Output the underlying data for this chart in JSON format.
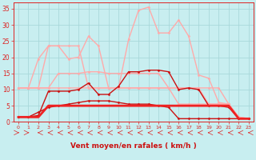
{
  "xlabel": "Vent moyen/en rafales ( km/h )",
  "background_color": "#c8eef0",
  "grid_color": "#a8d8da",
  "ylim": [
    0,
    37
  ],
  "yticks": [
    0,
    5,
    10,
    15,
    20,
    25,
    30,
    35
  ],
  "xlim": [
    -0.5,
    23.5
  ],
  "tick_color": "#dd2222",
  "label_color": "#cc1111",
  "series": [
    {
      "y": [
        10.5,
        10.5,
        10.5,
        10.5,
        10.5,
        10.5,
        10.5,
        10.5,
        10.5,
        10.5,
        10.5,
        10.5,
        10.5,
        10.5,
        10.5,
        10.5,
        5.5,
        5.5,
        5.5,
        5.5,
        5.5,
        5.5,
        1.0,
        1.0
      ],
      "color": "#ffaaaa",
      "lw": 1.0,
      "marker": "D",
      "ms": 1.5
    },
    {
      "y": [
        10.5,
        10.5,
        19.5,
        23.5,
        23.5,
        19.5,
        20.0,
        26.5,
        23.5,
        10.5,
        10.5,
        10.5,
        10.5,
        10.5,
        10.5,
        10.5,
        10.5,
        10.5,
        10.5,
        10.5,
        10.5,
        5.5,
        1.5,
        1.0
      ],
      "color": "#ffaaaa",
      "lw": 1.0,
      "marker": "D",
      "ms": 1.5
    },
    {
      "y": [
        10.5,
        10.5,
        10.5,
        10.5,
        15.0,
        15.0,
        15.0,
        15.5,
        15.5,
        15.0,
        15.0,
        15.0,
        15.0,
        15.0,
        15.0,
        10.5,
        10.5,
        10.5,
        10.5,
        5.5,
        5.5,
        5.5,
        1.0,
        1.0
      ],
      "color": "#ffaaaa",
      "lw": 1.0,
      "marker": "D",
      "ms": 1.5
    },
    {
      "y": [
        10.5,
        10.5,
        10.5,
        23.5,
        23.5,
        23.5,
        23.5,
        10.5,
        10.5,
        10.5,
        10.5,
        25.5,
        34.5,
        35.5,
        27.5,
        27.5,
        31.5,
        26.5,
        14.5,
        13.5,
        6.0,
        5.5,
        1.5,
        1.0
      ],
      "color": "#ffaaaa",
      "lw": 1.0,
      "marker": "D",
      "ms": 1.5
    },
    {
      "y": [
        1.5,
        1.5,
        2.0,
        9.5,
        9.5,
        9.5,
        10.0,
        12.0,
        8.5,
        8.5,
        11.0,
        15.5,
        15.5,
        16.0,
        16.0,
        15.5,
        10.0,
        10.5,
        10.0,
        5.0,
        5.0,
        4.5,
        1.0,
        1.0
      ],
      "color": "#cc1111",
      "lw": 1.0,
      "marker": "D",
      "ms": 1.5
    },
    {
      "y": [
        1.5,
        1.5,
        3.0,
        4.5,
        5.0,
        5.5,
        6.0,
        6.5,
        6.5,
        6.5,
        6.0,
        5.5,
        5.5,
        5.5,
        5.0,
        4.5,
        1.0,
        1.0,
        1.0,
        1.0,
        1.0,
        1.0,
        1.0,
        1.0
      ],
      "color": "#cc1111",
      "lw": 1.0,
      "marker": "D",
      "ms": 1.5
    },
    {
      "y": [
        1.5,
        1.5,
        1.5,
        5.0,
        5.0,
        5.0,
        5.0,
        5.0,
        5.0,
        5.0,
        5.0,
        5.0,
        5.0,
        5.0,
        5.0,
        5.0,
        5.0,
        5.0,
        5.0,
        5.0,
        5.0,
        5.0,
        1.0,
        1.0
      ],
      "color": "#ee2222",
      "lw": 2.0,
      "marker": null,
      "ms": 0
    }
  ],
  "arrows": {
    "angles": [
      45,
      45,
      315,
      315,
      315,
      315,
      315,
      270,
      270,
      270,
      270,
      270,
      270,
      270,
      270,
      270,
      270,
      270,
      270,
      270,
      270,
      315,
      315,
      315
    ],
    "color": "#dd2222"
  }
}
